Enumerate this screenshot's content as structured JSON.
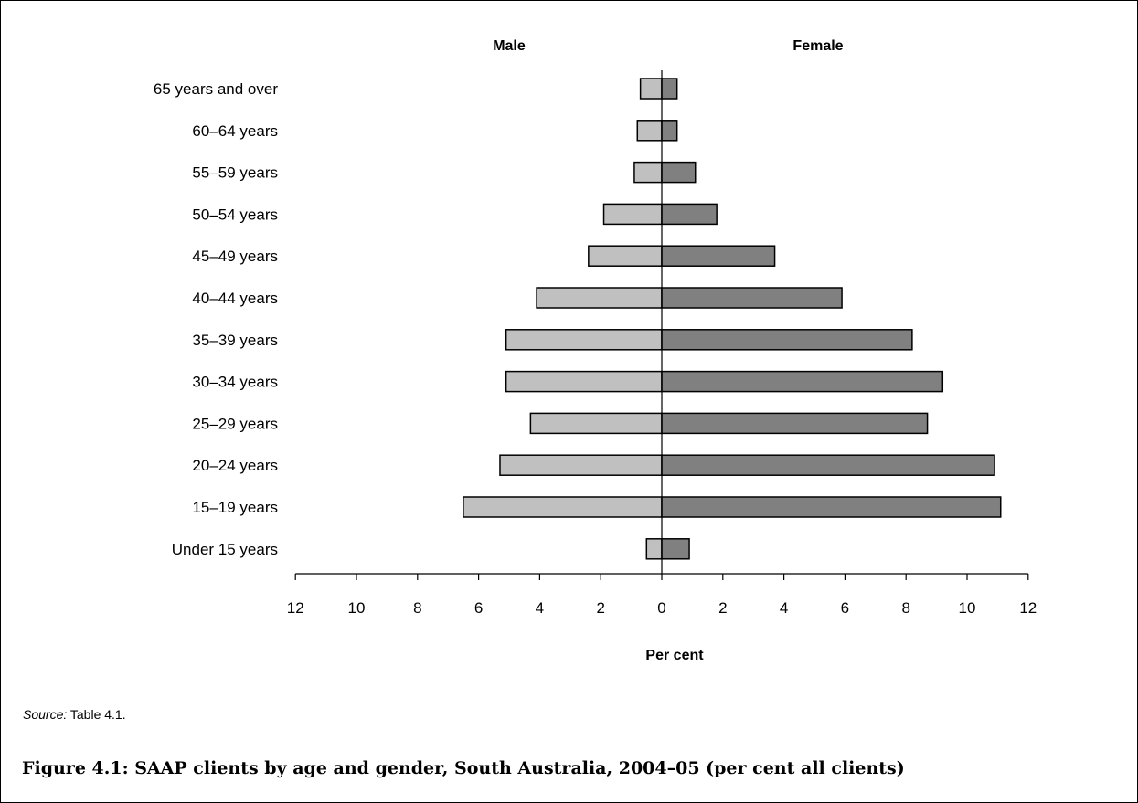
{
  "chart_data": {
    "type": "bar",
    "orientation": "horizontal-population-pyramid",
    "categories": [
      "65 years and over",
      "60–64 years",
      "55–59 years",
      "50–54 years",
      "45–49 years",
      "40–44 years",
      "35–39 years",
      "30–34 years",
      "25–29 years",
      "20–24 years",
      "15–19 years",
      "Under 15 years"
    ],
    "series": [
      {
        "name": "Male",
        "color": "#c0c0c0",
        "values": [
          0.7,
          0.8,
          0.9,
          1.9,
          2.4,
          4.1,
          5.1,
          5.1,
          4.3,
          5.3,
          6.5,
          0.5
        ]
      },
      {
        "name": "Female",
        "color": "#808080",
        "values": [
          0.5,
          0.5,
          1.1,
          1.8,
          3.7,
          5.9,
          8.2,
          9.2,
          8.7,
          10.9,
          11.1,
          0.9
        ]
      }
    ],
    "xlim": [
      -12,
      12
    ],
    "xticks": [
      12,
      10,
      8,
      6,
      4,
      2,
      0,
      2,
      4,
      6,
      8,
      10,
      12
    ],
    "xlabel": "Per cent",
    "grid": false,
    "legend": "none"
  },
  "source_label": "Source:",
  "source_text": " Table 4.1.",
  "caption": "Figure 4.1: SAAP clients by age and gender, South Australia, 2004–05 (per cent all clients)"
}
